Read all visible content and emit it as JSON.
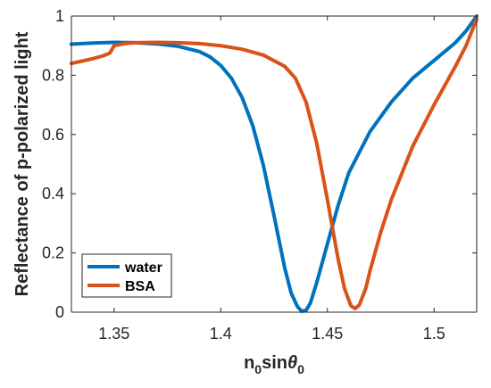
{
  "chart_data": {
    "type": "line",
    "title": "",
    "xlabel": "n0sinθ0",
    "xlabel_parts": {
      "base1": "n",
      "sub1": "0",
      "mid": "sin",
      "theta": "θ",
      "sub2": "0"
    },
    "ylabel": "Reflectance of p-polarized light",
    "xlim": [
      1.33,
      1.52
    ],
    "ylim": [
      0,
      1
    ],
    "xticks": [
      1.35,
      1.4,
      1.45,
      1.5
    ],
    "xtick_labels": [
      "1.35",
      "1.4",
      "1.45",
      "1.5"
    ],
    "yticks": [
      0,
      0.2,
      0.4,
      0.6,
      0.8,
      1
    ],
    "ytick_labels": [
      "0",
      "0.2",
      "0.4",
      "0.6",
      "0.8",
      "1"
    ],
    "grid": false,
    "legend": "bottom-left",
    "series": [
      {
        "name": "water",
        "color": "#0072BD",
        "x": [
          1.33,
          1.34,
          1.35,
          1.36,
          1.37,
          1.38,
          1.39,
          1.395,
          1.4,
          1.405,
          1.41,
          1.415,
          1.42,
          1.425,
          1.43,
          1.433,
          1.436,
          1.438,
          1.44,
          1.442,
          1.445,
          1.45,
          1.455,
          1.46,
          1.47,
          1.48,
          1.49,
          1.5,
          1.51,
          1.515,
          1.52
        ],
        "y": [
          0.905,
          0.909,
          0.911,
          0.91,
          0.906,
          0.898,
          0.88,
          0.862,
          0.833,
          0.79,
          0.725,
          0.63,
          0.495,
          0.325,
          0.15,
          0.065,
          0.018,
          0.003,
          0.006,
          0.03,
          0.1,
          0.23,
          0.36,
          0.47,
          0.61,
          0.71,
          0.79,
          0.85,
          0.91,
          0.95,
          1.0
        ]
      },
      {
        "name": "BSA",
        "color": "#D95319",
        "x": [
          1.33,
          1.335,
          1.34,
          1.345,
          1.348,
          1.35,
          1.355,
          1.36,
          1.37,
          1.38,
          1.39,
          1.4,
          1.41,
          1.42,
          1.43,
          1.435,
          1.44,
          1.445,
          1.45,
          1.455,
          1.458,
          1.461,
          1.463,
          1.465,
          1.468,
          1.47,
          1.475,
          1.48,
          1.49,
          1.5,
          1.51,
          1.515,
          1.52
        ],
        "y": [
          0.84,
          0.848,
          0.856,
          0.866,
          0.875,
          0.9,
          0.907,
          0.91,
          0.911,
          0.91,
          0.907,
          0.9,
          0.888,
          0.868,
          0.83,
          0.79,
          0.71,
          0.57,
          0.38,
          0.18,
          0.08,
          0.022,
          0.012,
          0.025,
          0.08,
          0.14,
          0.27,
          0.38,
          0.56,
          0.7,
          0.83,
          0.9,
          0.99
        ]
      }
    ]
  }
}
